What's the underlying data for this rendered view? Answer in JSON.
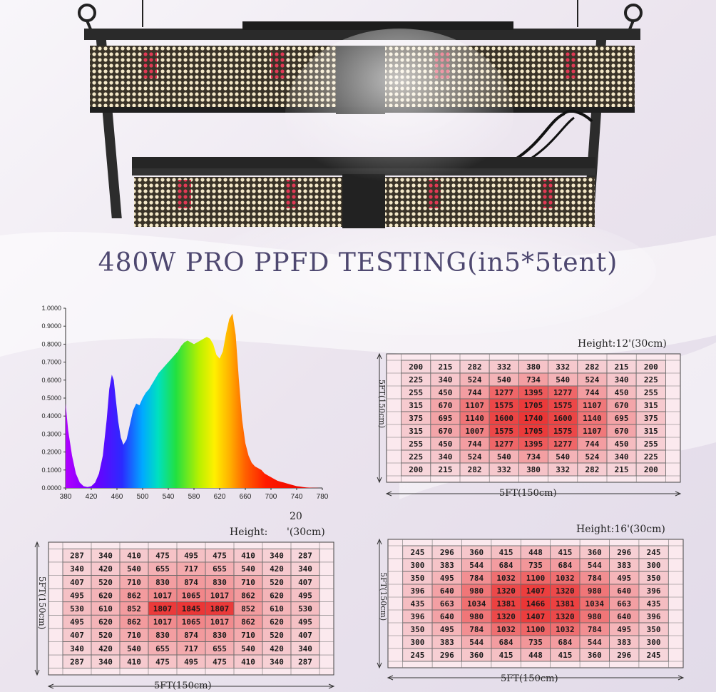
{
  "title": "480W  PRO PPFD TESTING(in5*5tent)",
  "chart_data": [
    {
      "type": "area",
      "name": "spectrum",
      "x_ticks": [
        "380",
        "420",
        "460",
        "500",
        "540",
        "580",
        "620",
        "660",
        "700",
        "740",
        "780"
      ],
      "y_ticks": [
        "0.0000",
        "0.1000",
        "0.2000",
        "0.3000",
        "0.4000",
        "0.5000",
        "0.6000",
        "0.7000",
        "0.8000",
        "0.9000",
        "1.0000"
      ],
      "xlim": [
        380,
        780
      ],
      "ylim": [
        0,
        1
      ],
      "x": [
        380,
        384,
        390,
        396,
        402,
        408,
        414,
        420,
        426,
        432,
        438,
        444,
        448,
        452,
        455,
        458,
        462,
        466,
        470,
        475,
        480,
        485,
        490,
        495,
        500,
        505,
        510,
        515,
        520,
        525,
        530,
        535,
        540,
        545,
        550,
        555,
        560,
        565,
        570,
        575,
        580,
        585,
        590,
        595,
        600,
        605,
        610,
        615,
        620,
        625,
        630,
        635,
        640,
        645,
        650,
        655,
        660,
        665,
        670,
        675,
        680,
        685,
        690,
        695,
        700,
        705,
        710,
        715,
        720,
        725,
        730,
        735,
        740,
        745,
        750,
        755,
        760,
        765,
        770,
        775,
        780
      ],
      "y": [
        0.47,
        0.32,
        0.18,
        0.08,
        0.03,
        0.01,
        0.005,
        0.01,
        0.03,
        0.08,
        0.18,
        0.38,
        0.55,
        0.63,
        0.6,
        0.5,
        0.37,
        0.28,
        0.24,
        0.27,
        0.35,
        0.43,
        0.47,
        0.46,
        0.5,
        0.53,
        0.55,
        0.58,
        0.61,
        0.64,
        0.66,
        0.68,
        0.7,
        0.72,
        0.74,
        0.76,
        0.79,
        0.81,
        0.82,
        0.81,
        0.8,
        0.81,
        0.82,
        0.83,
        0.84,
        0.83,
        0.8,
        0.74,
        0.72,
        0.76,
        0.86,
        0.94,
        0.97,
        0.85,
        0.6,
        0.38,
        0.25,
        0.18,
        0.14,
        0.12,
        0.11,
        0.1,
        0.08,
        0.07,
        0.06,
        0.05,
        0.04,
        0.035,
        0.03,
        0.025,
        0.02,
        0.015,
        0.01,
        0.008,
        0.005,
        0.003,
        0.002,
        0.001,
        0.001,
        0,
        0
      ]
    },
    {
      "type": "heatmap",
      "name": "12",
      "height_label": "Height:12'(30cm)",
      "x_axis_label": "5FT(150cm)",
      "y_axis_label": "5FT(150cm)",
      "rows": [
        [
          200,
          215,
          282,
          332,
          380,
          332,
          282,
          215,
          200
        ],
        [
          225,
          340,
          524,
          540,
          734,
          540,
          524,
          340,
          225
        ],
        [
          255,
          450,
          744,
          1277,
          1395,
          1277,
          744,
          450,
          255
        ],
        [
          315,
          670,
          1107,
          1575,
          1705,
          1575,
          1107,
          670,
          315
        ],
        [
          375,
          695,
          1140,
          1600,
          1740,
          1600,
          1140,
          695,
          375
        ],
        [
          315,
          670,
          1007,
          1575,
          1705,
          1575,
          1107,
          670,
          315
        ],
        [
          255,
          450,
          744,
          1277,
          1395,
          1277,
          744,
          450,
          255
        ],
        [
          225,
          340,
          524,
          540,
          734,
          540,
          524,
          340,
          225
        ],
        [
          200,
          215,
          282,
          332,
          380,
          332,
          282,
          215,
          200
        ]
      ]
    },
    {
      "type": "heatmap",
      "name": "20",
      "height_number": "20",
      "height_label": "Height:",
      "height_suffix": "'(30cm)",
      "x_axis_label": "5FT(150cm)",
      "y_axis_label": "5FT(150cm)",
      "rows": [
        [
          287,
          340,
          410,
          475,
          495,
          475,
          410,
          340,
          287
        ],
        [
          340,
          420,
          540,
          655,
          717,
          655,
          540,
          420,
          340
        ],
        [
          407,
          520,
          710,
          830,
          874,
          830,
          710,
          520,
          407
        ],
        [
          495,
          620,
          862,
          1017,
          1065,
          1017,
          862,
          620,
          495
        ],
        [
          530,
          610,
          852,
          1807,
          1845,
          1807,
          852,
          610,
          530
        ],
        [
          495,
          620,
          862,
          1017,
          1065,
          1017,
          862,
          620,
          495
        ],
        [
          407,
          520,
          710,
          830,
          874,
          830,
          710,
          520,
          407
        ],
        [
          340,
          420,
          540,
          655,
          717,
          655,
          540,
          420,
          340
        ],
        [
          287,
          340,
          410,
          475,
          495,
          475,
          410,
          340,
          287
        ]
      ]
    },
    {
      "type": "heatmap",
      "name": "16",
      "height_label": "Height:16'(30cm)",
      "x_axis_label": "5FT(150cm)",
      "y_axis_label": "5FT(150cm)",
      "rows": [
        [
          245,
          296,
          360,
          415,
          448,
          415,
          360,
          296,
          245
        ],
        [
          300,
          383,
          544,
          684,
          735,
          684,
          544,
          383,
          300
        ],
        [
          350,
          495,
          784,
          1032,
          1100,
          1032,
          784,
          495,
          350
        ],
        [
          396,
          640,
          980,
          1320,
          1407,
          1320,
          980,
          640,
          396
        ],
        [
          435,
          663,
          1034,
          1381,
          1466,
          1381,
          1034,
          663,
          435
        ],
        [
          396,
          640,
          980,
          1320,
          1407,
          1320,
          980,
          640,
          396
        ],
        [
          350,
          495,
          784,
          1032,
          1100,
          1032,
          784,
          495,
          350
        ],
        [
          300,
          383,
          544,
          684,
          735,
          684,
          544,
          383,
          300
        ],
        [
          245,
          296,
          360,
          415,
          448,
          415,
          360,
          296,
          245
        ]
      ]
    }
  ]
}
